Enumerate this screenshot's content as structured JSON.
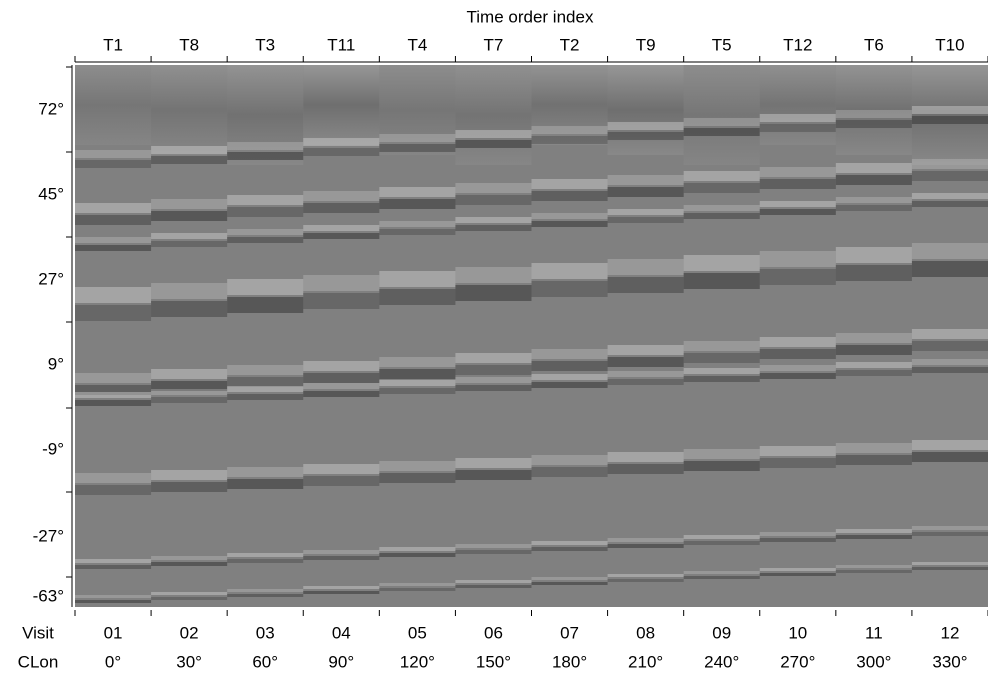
{
  "figure": {
    "title": "Time order index",
    "columns": [
      "T1",
      "T8",
      "T3",
      "T11",
      "T4",
      "T7",
      "T2",
      "T9",
      "T5",
      "T12",
      "T6",
      "T10"
    ],
    "latitude_labels": [
      "72°",
      "45°",
      "27°",
      "9°",
      "-9°",
      "-27°",
      "-63°"
    ],
    "visit_label": "Visit",
    "visits": [
      "01",
      "02",
      "03",
      "04",
      "05",
      "06",
      "07",
      "08",
      "09",
      "10",
      "11",
      "12"
    ],
    "clon_label": "CLon",
    "clons": [
      "0°",
      "30°",
      "60°",
      "90°",
      "120°",
      "150°",
      "180°",
      "210°",
      "240°",
      "270°",
      "300°",
      "330°"
    ]
  }
}
